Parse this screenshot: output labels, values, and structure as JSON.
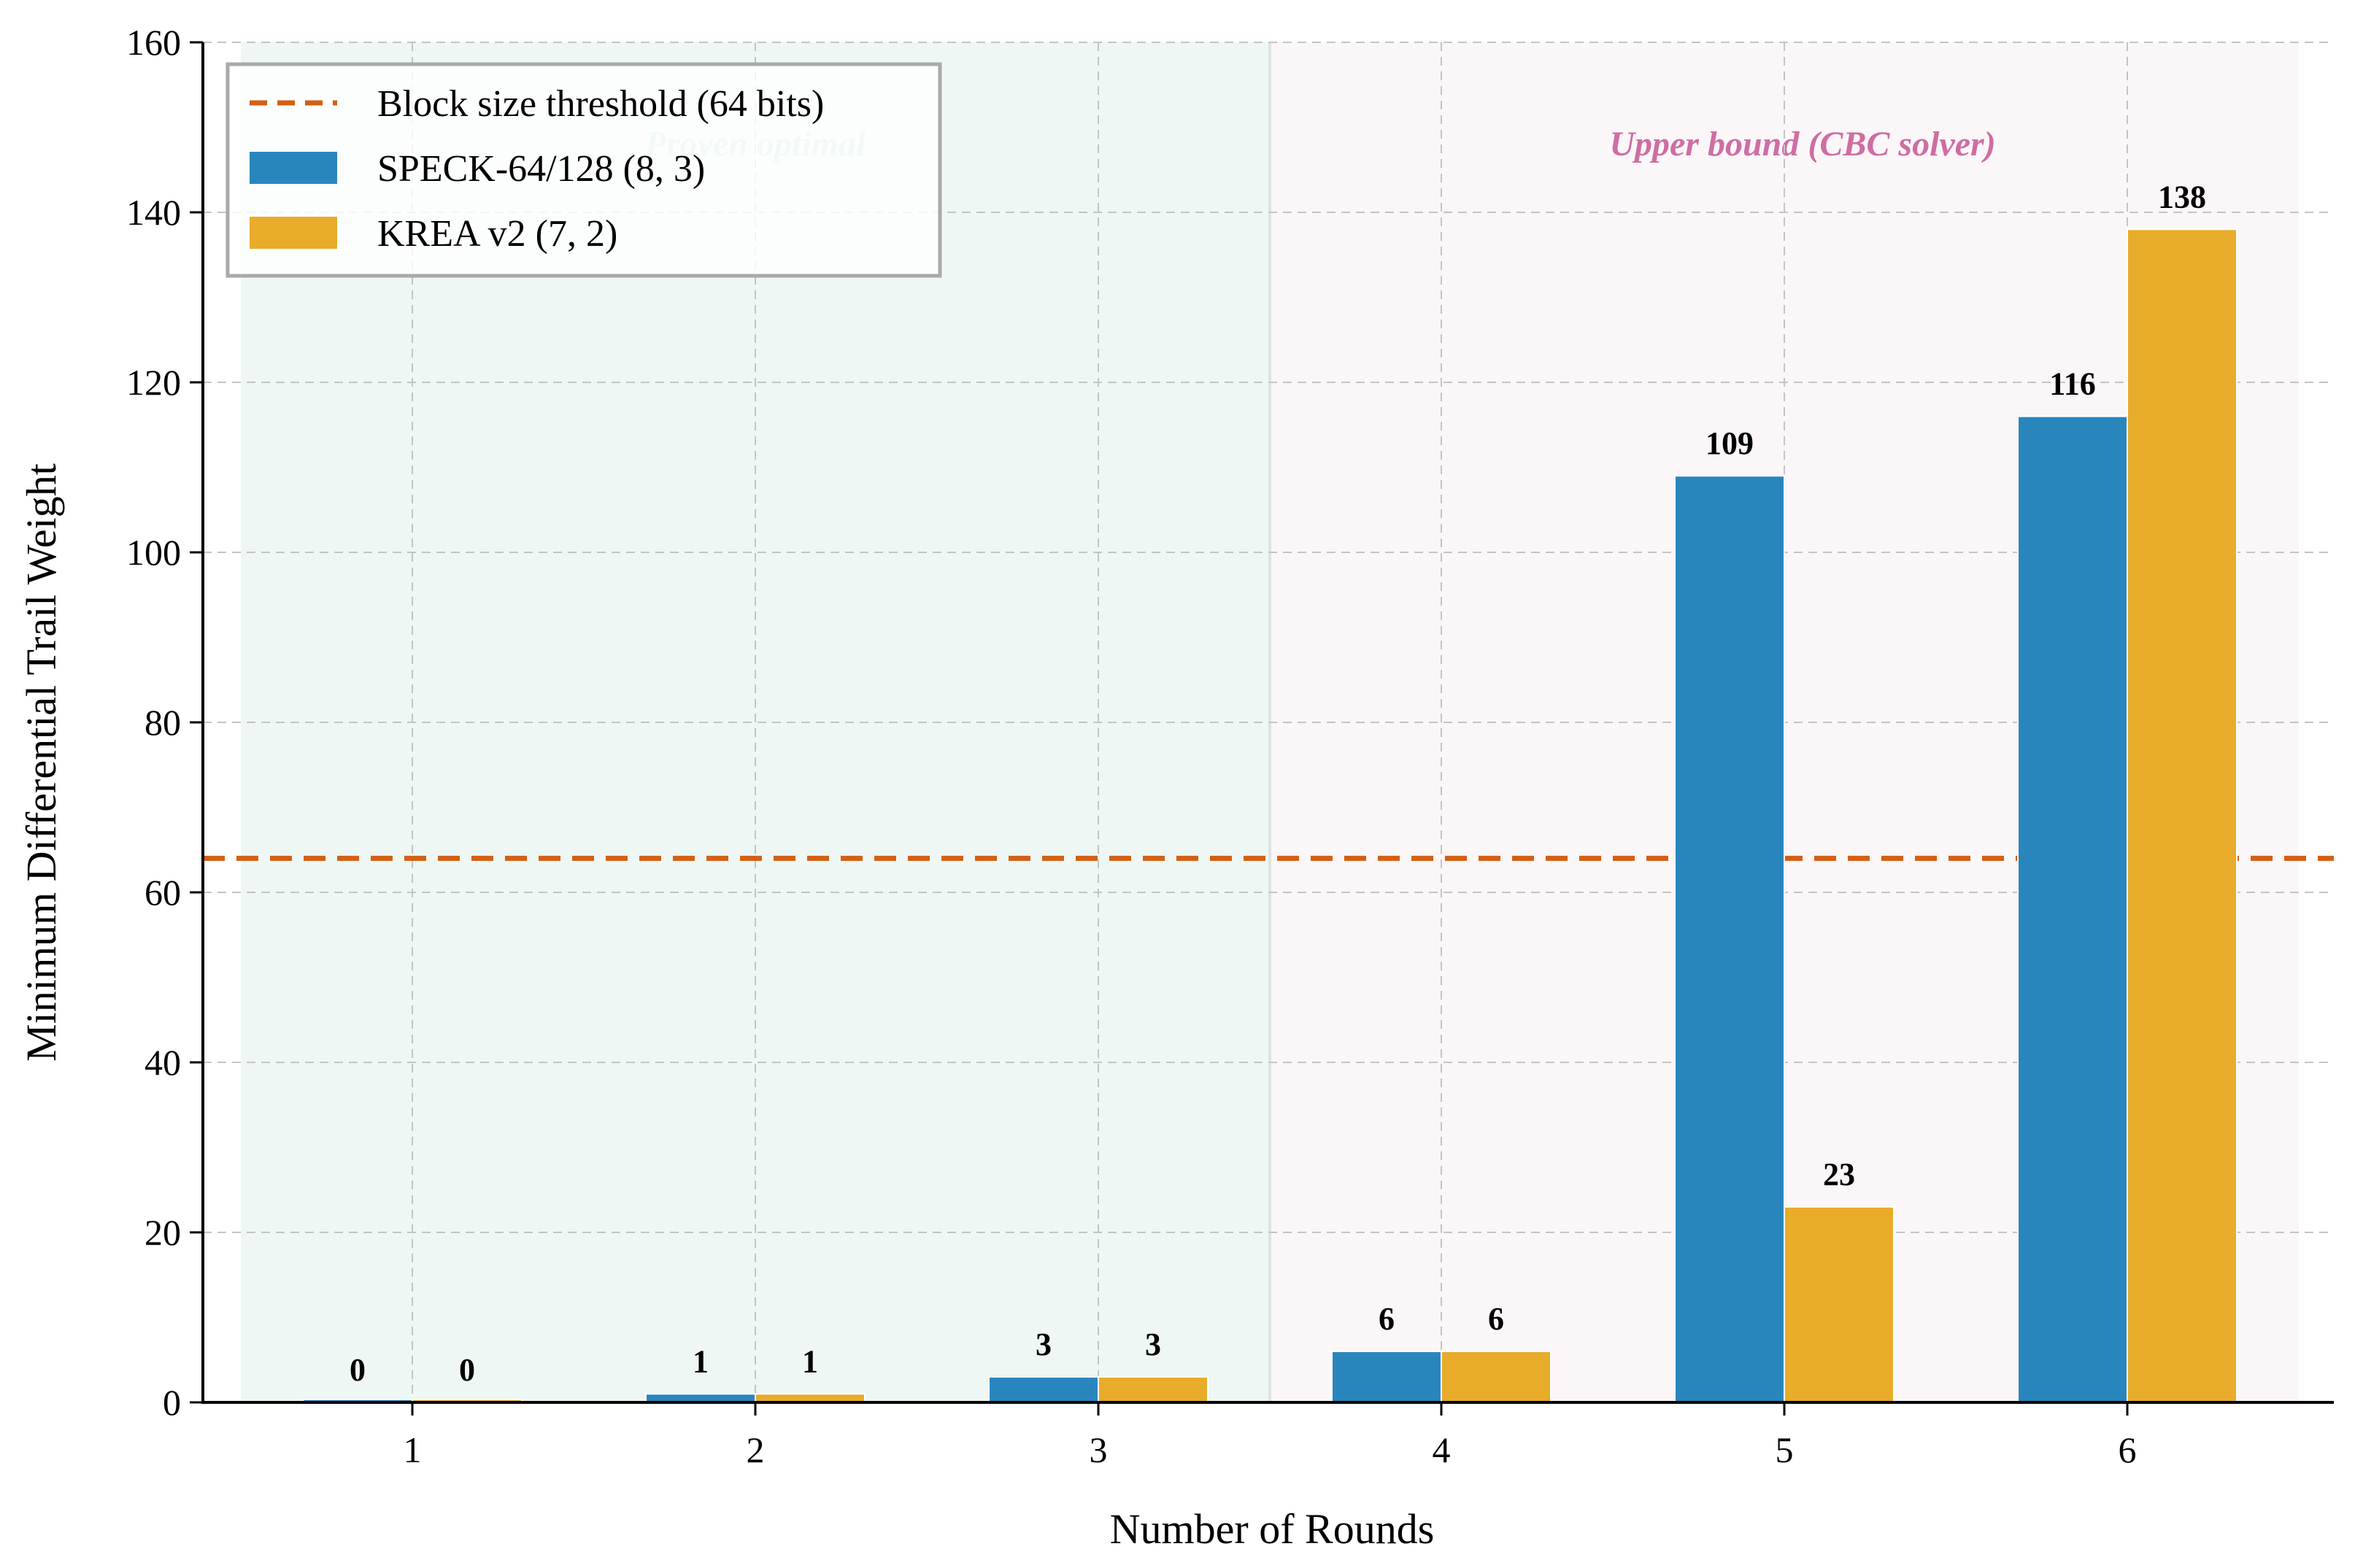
{
  "chart_data": {
    "type": "bar",
    "title": "",
    "xlabel": "Number of Rounds",
    "ylabel": "Minimum Differential Trail Weight",
    "categories": [
      "1",
      "2",
      "3",
      "4",
      "5",
      "6"
    ],
    "ylim": [
      0,
      160
    ],
    "yticks": [
      "0",
      "20",
      "40",
      "60",
      "80",
      "100",
      "120",
      "140",
      "160"
    ],
    "series": [
      {
        "name": "SPECK-64/128 (8, 3)",
        "values": [
          0,
          1,
          3,
          6,
          109,
          116
        ],
        "color": "#2986bd"
      },
      {
        "name": "KREA v2 (7, 2)",
        "values": [
          0,
          1,
          3,
          6,
          23,
          138
        ],
        "color": "#e8ac2a"
      }
    ],
    "reference_line": {
      "name": "Block size threshold (64 bits)",
      "value": 64,
      "color": "#d45f13",
      "style": "dashed"
    },
    "regions": [
      {
        "label": "Proven optimal",
        "rounds": [
          "1",
          "3"
        ],
        "color": "#eef7f4",
        "text_color": "#b8e2d4"
      },
      {
        "label": "Upper bound (CBC solver)",
        "rounds": [
          "4",
          "6"
        ],
        "color": "#fbf6f8",
        "text_color": "#cd6ea2"
      }
    ],
    "grid": true,
    "legend_position": "top-left"
  }
}
